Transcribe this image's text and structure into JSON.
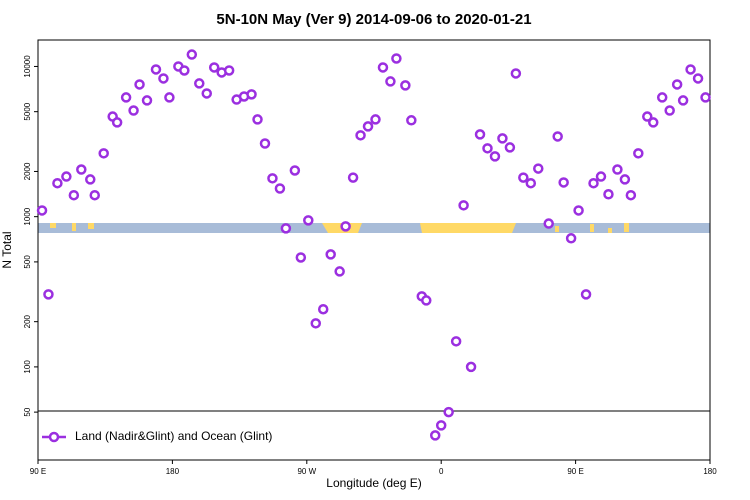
{
  "chart_data": {
    "type": "scatter",
    "title": "5N-10N May (Ver 9)   2014-09-06 to 2020-01-21",
    "xlabel": "Longitude (deg E)",
    "ylabel": "N Total",
    "ylog": true,
    "legend": "lower left",
    "xlim": [
      90,
      540
    ],
    "ylim": [
      24,
      15000
    ],
    "xticks": [
      {
        "value": 90,
        "label": "90 E"
      },
      180,
      {
        "value": 270,
        "label": "90 W"
      },
      {
        "value": 360,
        "label": "0"
      },
      {
        "value": 450,
        "label": "90 E"
      },
      {
        "value": 540,
        "label": "180"
      }
    ],
    "yticks": [
      50,
      100,
      200,
      500,
      1000,
      2000,
      5000,
      10000
    ],
    "series": [
      {
        "name": "Land (Nadir&Glint) and Ocean (Glint)",
        "color": "#9b2fe0",
        "x": [
          92.7,
          97,
          103,
          109,
          114,
          119,
          125,
          128,
          134,
          140,
          143,
          149,
          154,
          158,
          163,
          169,
          174,
          178,
          184,
          188,
          193,
          198,
          203,
          208,
          213,
          218,
          223,
          228,
          233,
          237,
          242,
          247,
          252,
          256,
          262,
          266,
          271,
          276,
          281,
          286,
          292,
          296,
          301,
          306,
          311,
          316,
          321,
          326,
          330,
          336,
          340,
          347,
          350,
          356,
          360,
          365,
          370,
          375,
          380,
          386,
          391,
          396,
          401,
          406,
          410,
          415,
          420,
          425,
          432,
          438,
          442,
          447,
          452,
          457,
          462,
          467,
          472,
          478,
          483,
          487,
          492,
          498,
          502,
          508,
          513,
          518,
          522,
          527,
          532,
          537
        ],
        "values": [
          1100,
          304,
          1670,
          1850,
          1390,
          2060,
          1770,
          1390,
          2640,
          4640,
          4240,
          6220,
          5090,
          7590,
          5940,
          9550,
          8320,
          6220,
          10000,
          9400,
          12000,
          7710,
          6610,
          9850,
          9120,
          9400,
          6020,
          6310,
          6520,
          4440,
          3070,
          1800,
          1540,
          836,
          2030,
          535,
          945,
          195,
          242,
          561,
          432,
          862,
          1820,
          3480,
          3990,
          4440,
          9850,
          7950,
          11300,
          7480,
          4380,
          295,
          277,
          35,
          40.8,
          50,
          148,
          1190,
          100,
          3530,
          2850,
          2520,
          3320,
          2890,
          8980,
          1820,
          1670,
          2090,
          900,
          3420,
          1690,
          718,
          1100,
          304,
          1670,
          1850,
          1410,
          2060,
          1770,
          1390,
          2640,
          4640,
          4240,
          6220,
          5090,
          7590,
          5940,
          9550,
          8320,
          6220
        ]
      }
    ]
  }
}
